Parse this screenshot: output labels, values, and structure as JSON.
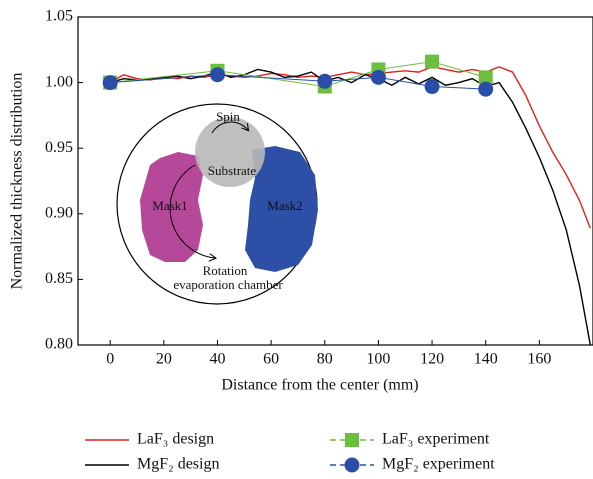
{
  "chart_data": {
    "type": "line",
    "xlabel": "Distance from the center (mm)",
    "ylabel": "Normalized thickness distribution",
    "xlim": [
      -12,
      180
    ],
    "ylim": [
      0.8,
      1.05
    ],
    "xticks": [
      0,
      20,
      40,
      60,
      80,
      100,
      120,
      140,
      160
    ],
    "yticks": [
      {
        "value": 0.8,
        "label": "0.80"
      },
      {
        "value": 0.85,
        "label": "0.85"
      },
      {
        "value": 0.9,
        "label": "0.90"
      },
      {
        "value": 0.95,
        "label": "0.95"
      },
      {
        "value": 1.0,
        "label": "1.00"
      },
      {
        "value": 1.05,
        "label": "1.05"
      }
    ],
    "series": [
      {
        "name": "LaF₃ design",
        "color": "#e02020",
        "marker": "none",
        "x": [
          0,
          5,
          10,
          15,
          20,
          25,
          30,
          35,
          40,
          45,
          50,
          55,
          60,
          65,
          70,
          75,
          80,
          85,
          90,
          95,
          100,
          105,
          110,
          115,
          120,
          125,
          130,
          135,
          140,
          145,
          150,
          155,
          160,
          165,
          170,
          175,
          179
        ],
        "values": [
          1.0,
          1.006,
          1.003,
          1.002,
          1.004,
          1.003,
          1.005,
          1.004,
          1.006,
          1.005,
          1.004,
          1.005,
          1.007,
          1.006,
          1.004,
          1.005,
          1.004,
          1.006,
          1.008,
          1.006,
          1.007,
          1.008,
          1.009,
          1.008,
          1.012,
          1.01,
          1.008,
          1.01,
          1.008,
          1.012,
          1.008,
          0.99,
          0.967,
          0.947,
          0.93,
          0.91,
          0.889
        ]
      },
      {
        "name": "MgF₂ design",
        "color": "#000000",
        "marker": "none",
        "x": [
          0,
          5,
          10,
          15,
          20,
          25,
          30,
          35,
          40,
          45,
          50,
          55,
          60,
          65,
          70,
          75,
          80,
          85,
          90,
          95,
          100,
          105,
          110,
          115,
          120,
          125,
          130,
          135,
          140,
          145,
          150,
          155,
          160,
          165,
          170,
          175,
          179
        ],
        "values": [
          1.0,
          1.003,
          1.002,
          1.003,
          1.004,
          1.005,
          1.003,
          1.005,
          1.008,
          1.004,
          1.006,
          1.01,
          1.008,
          1.004,
          1.005,
          1.008,
          1.001,
          1.004,
          1.0,
          1.006,
          1.003,
          0.998,
          1.004,
          0.999,
          1.004,
          0.998,
          1.0,
          1.003,
          0.997,
          1.0,
          0.985,
          0.965,
          0.943,
          0.918,
          0.888,
          0.845,
          0.8
        ]
      },
      {
        "name": "LaF₃ experiment",
        "color": "#6cbf3c",
        "marker": "square",
        "x": [
          0,
          40,
          80,
          100,
          120,
          140
        ],
        "values": [
          1.0,
          1.009,
          0.997,
          1.01,
          1.016,
          1.004
        ]
      },
      {
        "name": "MgF₂ experiment",
        "color": "#2a4ea8",
        "marker": "circle",
        "x": [
          0,
          40,
          80,
          100,
          120,
          140
        ],
        "values": [
          1.0,
          1.006,
          1.001,
          1.004,
          0.997,
          0.995
        ]
      }
    ],
    "inset_labels": [
      "Spin",
      "Substrate",
      "Mask1",
      "Mask2",
      "Rotation",
      "evaporation chamber"
    ]
  }
}
